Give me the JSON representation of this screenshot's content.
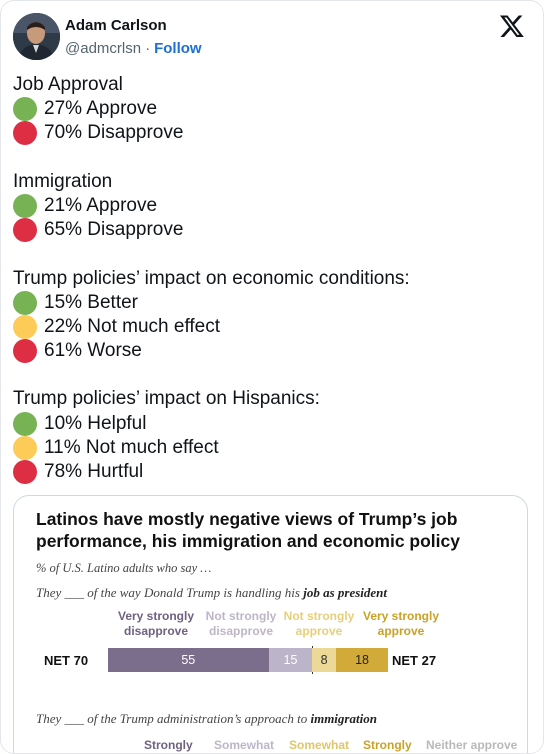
{
  "author": {
    "name": "Adam Carlson",
    "handle": "@admcrlsn",
    "separator": "·",
    "follow_label": "Follow"
  },
  "tweet": {
    "groups": [
      {
        "heading": "Job Approval",
        "lines": [
          {
            "color": "green",
            "text": "27% Approve"
          },
          {
            "color": "red",
            "text": "70% Disapprove"
          }
        ]
      },
      {
        "heading": "Immigration",
        "lines": [
          {
            "color": "green",
            "text": "21% Approve"
          },
          {
            "color": "red",
            "text": "65% Disapprove"
          }
        ]
      },
      {
        "heading": "Trump policies’ impact on economic conditions:",
        "lines": [
          {
            "color": "green",
            "text": "15% Better"
          },
          {
            "color": "yellow",
            "text": "22% Not much effect"
          },
          {
            "color": "red",
            "text": "61% Worse"
          }
        ]
      },
      {
        "heading": "Trump policies’ impact on Hispanics:",
        "lines": [
          {
            "color": "green",
            "text": "10% Helpful"
          },
          {
            "color": "yellow",
            "text": "11% Not much effect"
          },
          {
            "color": "red",
            "text": "78% Hurtful"
          }
        ]
      }
    ]
  },
  "embed": {
    "title": "Latinos have mostly negative views of Trump’s job performance, his immigration and economic policy",
    "subtitle": "% of U.S. Latino adults who say …",
    "q1_prefix": "They ___ of the way Donald Trump is handling his ",
    "q1_bold": "job as president",
    "legend": [
      {
        "text": "Very strongly disapprove",
        "color": "#6e6280"
      },
      {
        "text": "Not strongly disapprove",
        "color": "#bdb6c8"
      },
      {
        "text": "Not strongly approve",
        "color": "#e7cf7a"
      },
      {
        "text": "Very strongly approve",
        "color": "#c9a227"
      }
    ],
    "net_left": "NET 70",
    "net_right": "NET 27",
    "bar": [
      {
        "label": "55",
        "value": 55,
        "color": "#7b6e8c",
        "text_color": "#ffffff"
      },
      {
        "label": "15",
        "value": 15,
        "color": "#bcb4c9",
        "text_color": "#ffffff"
      },
      {
        "label": "8",
        "value": 8,
        "color": "#ecd897",
        "text_color": "#333333"
      },
      {
        "label": "18",
        "value": 18,
        "color": "#d2aa3a",
        "text_color": "#222222"
      }
    ],
    "q2_prefix": "They ___ of the Trump administration’s approach to ",
    "q2_bold": "immigration",
    "legend2": [
      {
        "text": "Strongly",
        "color": "#6e6280"
      },
      {
        "text": "Somewhat",
        "color": "#bdb6c8"
      },
      {
        "text": "Somewhat",
        "color": "#e0c66a"
      },
      {
        "text": "Strongly",
        "color": "#c9a227"
      },
      {
        "text": "Neither approve",
        "color": "#b9b9b9"
      }
    ]
  },
  "colors": {
    "green": "#77b255",
    "red": "#dd2e44",
    "yellow": "#fdcb58",
    "follow": "#1d6fd6"
  },
  "icons": {
    "logo": "x-logo-icon",
    "avatar": "avatar"
  }
}
